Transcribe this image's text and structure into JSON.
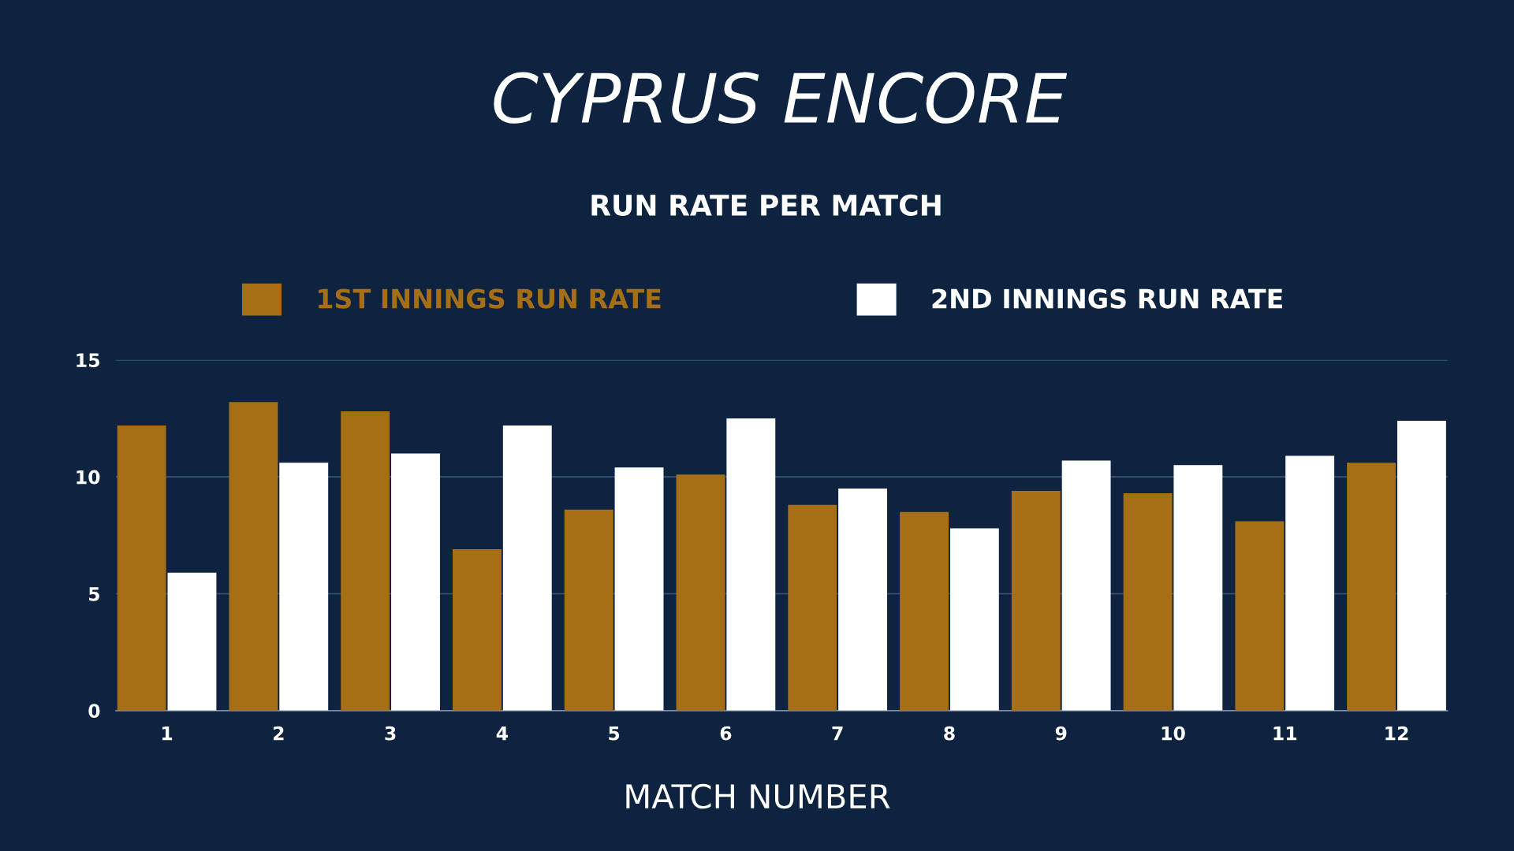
{
  "chart_data": {
    "type": "bar",
    "title": "CYPRUS ENCORE",
    "subtitle": "RUN RATE PER MATCH",
    "xlabel": "MATCH NUMBER",
    "categories": [
      "1",
      "2",
      "3",
      "4",
      "5",
      "6",
      "7",
      "8",
      "9",
      "10",
      "11",
      "12"
    ],
    "series": [
      {
        "name": "1ST INNINGS RUN RATE",
        "color": "#a66f16",
        "values": [
          12.2,
          13.2,
          12.8,
          6.9,
          8.6,
          10.1,
          8.8,
          8.5,
          9.4,
          9.3,
          8.1,
          10.6
        ]
      },
      {
        "name": "2ND INNINGS RUN RATE",
        "color": "#ffffff",
        "values": [
          5.9,
          10.6,
          11.0,
          12.2,
          10.4,
          12.5,
          9.5,
          7.8,
          10.7,
          10.5,
          10.9,
          12.4
        ]
      }
    ],
    "ylim": [
      0,
      15
    ],
    "yticks": [
      0,
      5,
      10,
      15
    ],
    "grid": "y",
    "legend": "top"
  }
}
